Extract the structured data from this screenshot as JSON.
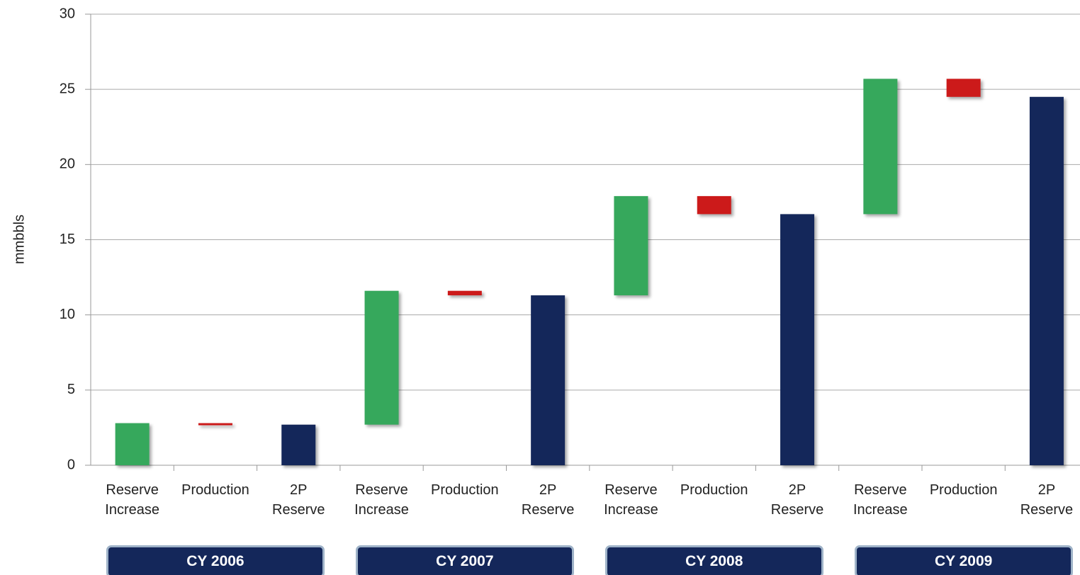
{
  "chart_data": {
    "type": "waterfall",
    "y_label": "mmbbls",
    "ylim": [
      0,
      30
    ],
    "yticks": [
      0,
      5,
      10,
      15,
      20,
      25,
      30
    ],
    "grid": true,
    "groups": [
      {
        "label": "CY 2006",
        "categories": [
          "Reserve Increase",
          "Production",
          "2P Reserve"
        ],
        "values": [
          2.8,
          -0.1,
          2.7
        ],
        "colors": [
          "#36a85c",
          "#cc1a1a",
          "#14275a"
        ]
      },
      {
        "label": "CY 2007",
        "categories": [
          "Reserve Increase",
          "Production",
          "2P Reserve"
        ],
        "values": [
          8.9,
          -0.3,
          11.3
        ],
        "colors": [
          "#36a85c",
          "#cc1a1a",
          "#14275a"
        ]
      },
      {
        "label": "CY 2008",
        "categories": [
          "Reserve Increase",
          "Production",
          "2P Reserve"
        ],
        "values": [
          6.6,
          -1.2,
          16.7
        ],
        "colors": [
          "#36a85c",
          "#cc1a1a",
          "#14275a"
        ]
      },
      {
        "label": "CY 2009",
        "categories": [
          "Reserve Increase",
          "Production",
          "2P Reserve"
        ],
        "values": [
          9.0,
          -1.2,
          24.5
        ],
        "colors": [
          "#36a85c",
          "#cc1a1a",
          "#14275a"
        ]
      }
    ]
  }
}
